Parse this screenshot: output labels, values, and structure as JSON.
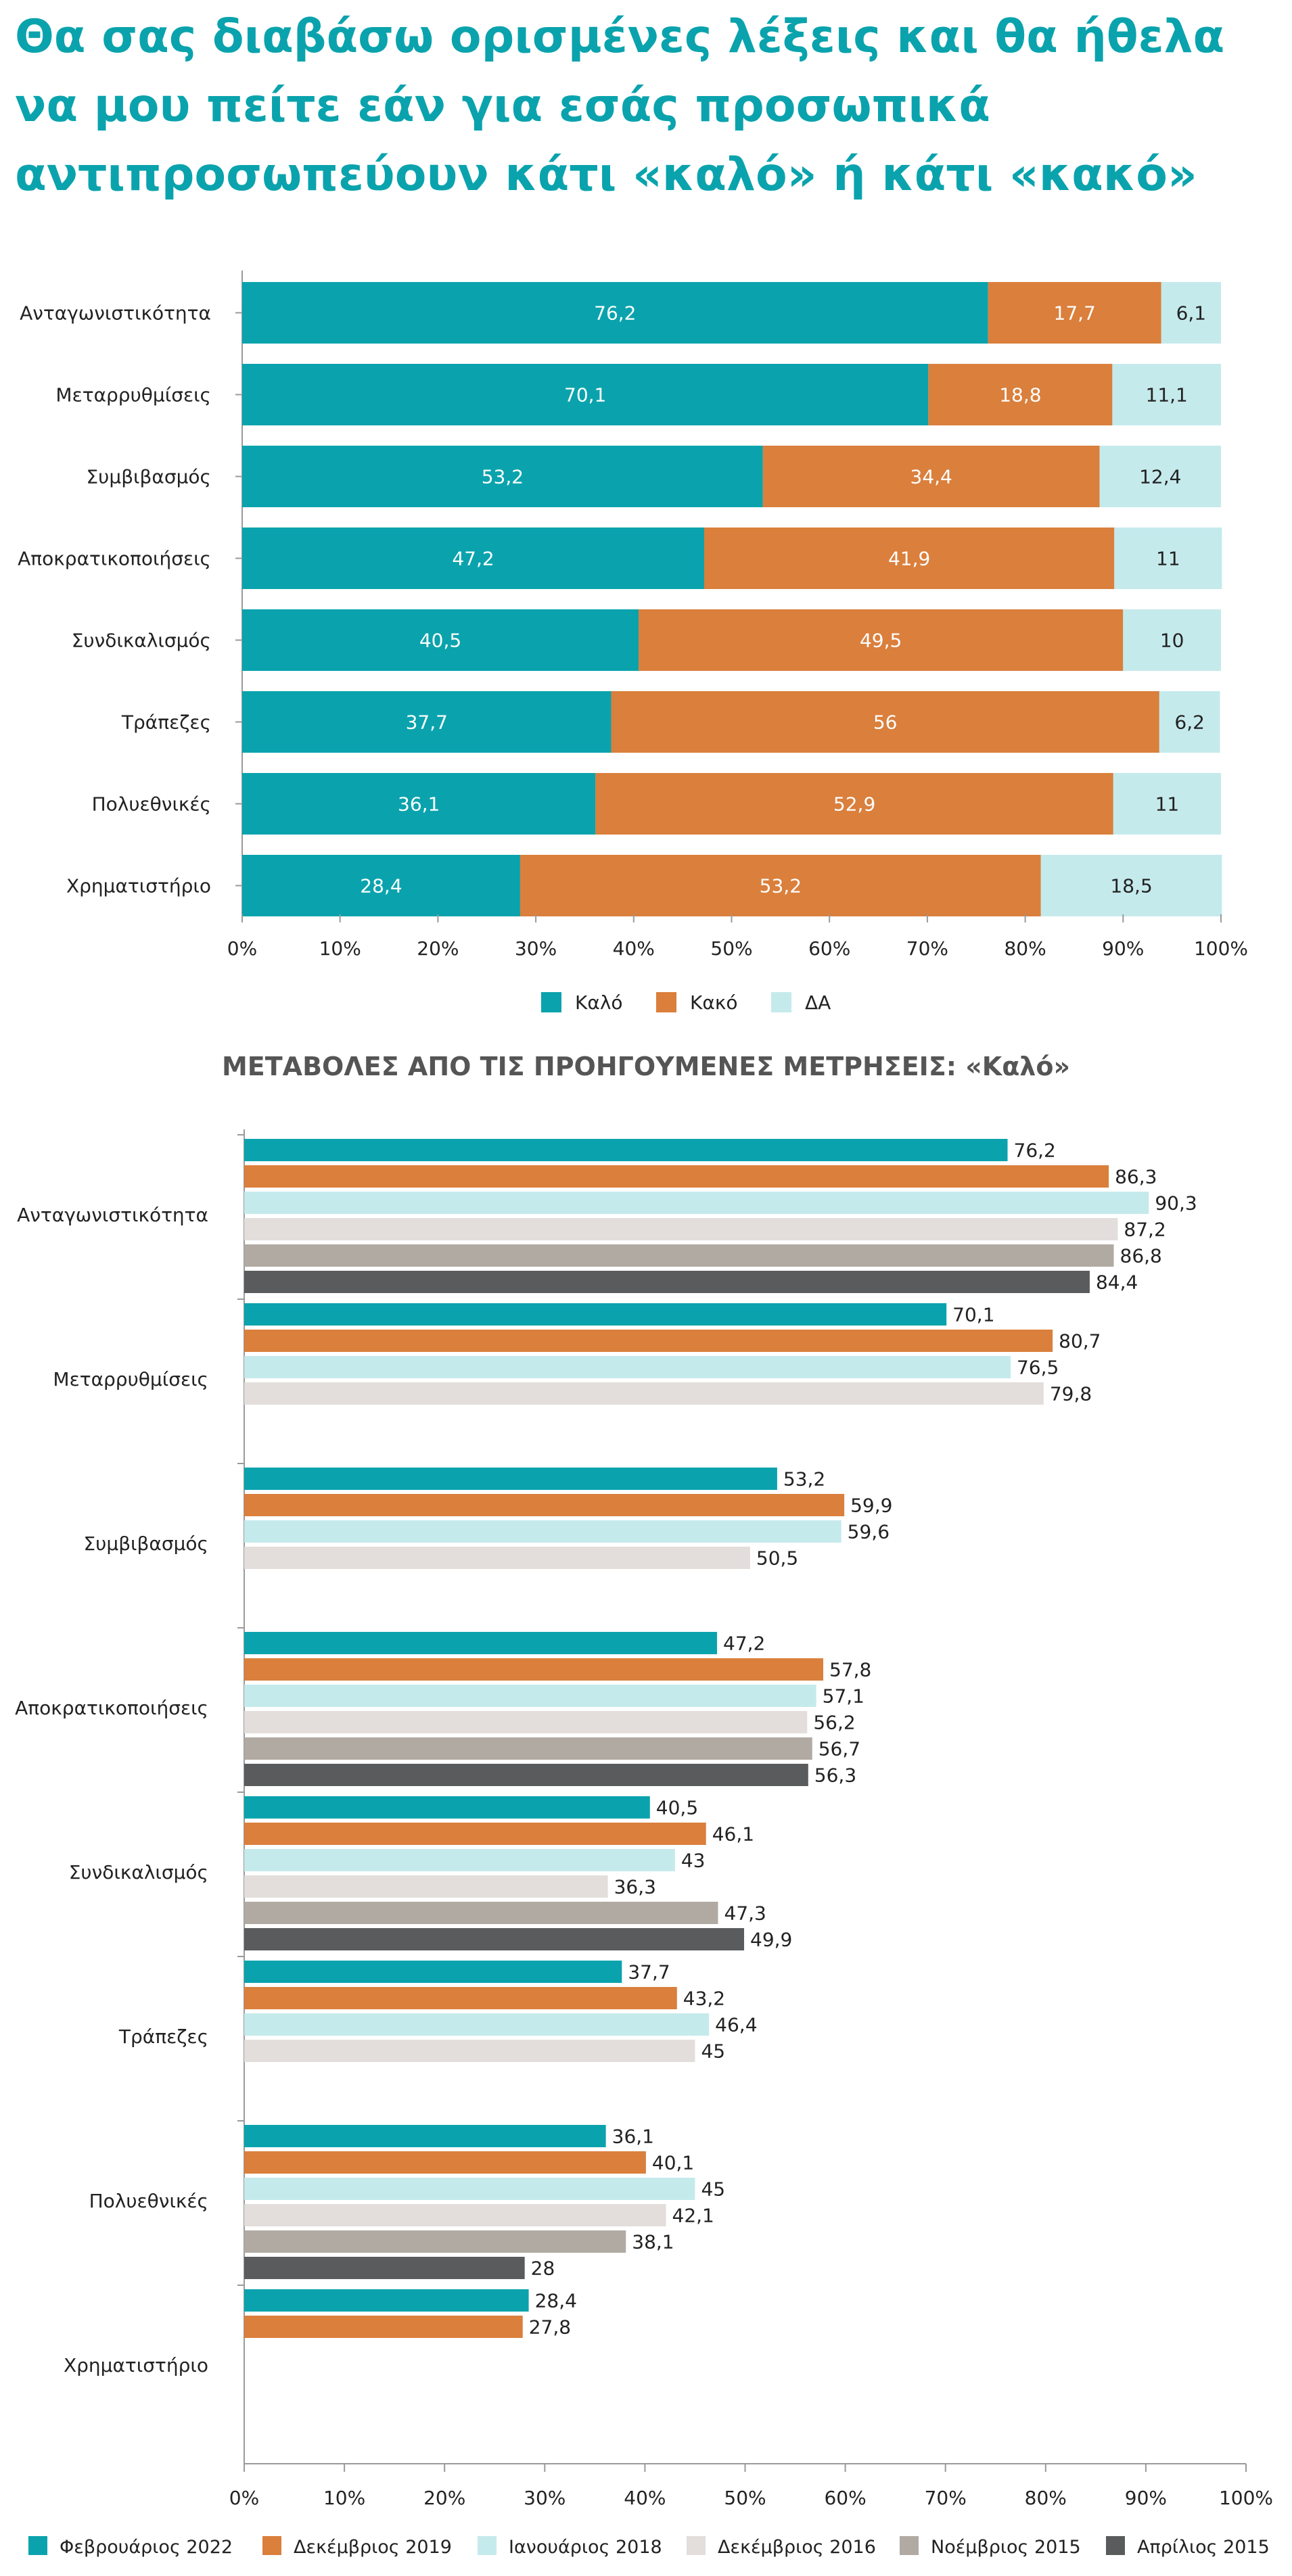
{
  "title": "Θα σας διαβάσω ορισμένες λέξεις και θα ήθελα να μου πείτε εάν για εσάς προσωπικά αντιπροσωπεύουν κάτι «καλό» ή κάτι «κακό»",
  "colors": {
    "title": "#0aa3ad",
    "kalo": "#0aa3ad",
    "kako": "#da7f3c",
    "da": "#c5eaec",
    "dec2016": "#e3dedb",
    "nov2015": "#b1aaa2",
    "apr2015": "#5a5b5d",
    "axis": "#9a9a9a"
  },
  "chart_data": [
    {
      "type": "bar",
      "stacked": true,
      "orientation": "horizontal",
      "categories": [
        "Ανταγωνιστικότητα",
        "Μεταρρυθμίσεις",
        "Συμβιβασμός",
        "Αποκρατικοποιήσεις",
        "Συνδικαλισμός",
        "Τράπεζες",
        "Πολυεθνικές",
        "Χρηματιστήριο"
      ],
      "series": [
        {
          "name": "Καλό",
          "color": "#0aa3ad",
          "values": [
            76.2,
            70.1,
            53.2,
            47.2,
            40.5,
            37.7,
            36.1,
            28.4
          ]
        },
        {
          "name": "Κακό",
          "color": "#da7f3c",
          "values": [
            17.7,
            18.8,
            34.4,
            41.9,
            49.5,
            56,
            52.9,
            53.2
          ]
        },
        {
          "name": "ΔΑ",
          "color": "#c5eaec",
          "values": [
            6.1,
            11.1,
            12.4,
            11,
            10,
            6.2,
            11,
            18.5
          ]
        }
      ],
      "xticks": [
        "0%",
        "10%",
        "20%",
        "30%",
        "40%",
        "50%",
        "60%",
        "70%",
        "80%",
        "90%",
        "100%"
      ],
      "xlim": [
        0,
        100
      ],
      "legend": "bottom"
    },
    {
      "type": "bar",
      "orientation": "horizontal",
      "subtitle": "ΜΕΤΑΒΟΛΕΣ ΑΠΟ ΤΙΣ ΠΡΟΗΓΟΥΜΕΝΕΣ ΜΕΤΡΗΣΕΙΣ: «Καλό»",
      "categories": [
        "Ανταγωνιστικότητα",
        "Μεταρρυθμίσεις",
        "Συμβιβασμός",
        "Αποκρατικοποιήσεις",
        "Συνδικαλισμός",
        "Τράπεζες",
        "Πολυεθνικές",
        "Χρηματιστήριο"
      ],
      "series": [
        {
          "name": "Φεβρουάριος 2022",
          "color": "#0aa3ad",
          "values": [
            76.2,
            70.1,
            53.2,
            47.2,
            40.5,
            37.7,
            36.1,
            28.4
          ]
        },
        {
          "name": "Δεκέμβριος 2019",
          "color": "#da7f3c",
          "values": [
            86.3,
            80.7,
            59.9,
            57.8,
            46.1,
            43.2,
            40.1,
            27.8
          ]
        },
        {
          "name": "Ιανουάριος 2018",
          "color": "#c5eaec",
          "values": [
            90.3,
            76.5,
            59.6,
            57.1,
            43,
            46.4,
            45,
            null
          ]
        },
        {
          "name": "Δεκέμβριος 2016",
          "color": "#e3dedb",
          "values": [
            87.2,
            79.8,
            50.5,
            56.2,
            36.3,
            45,
            42.1,
            null
          ]
        },
        {
          "name": "Νοέμβριος 2015",
          "color": "#b1aaa2",
          "values": [
            86.8,
            null,
            null,
            56.7,
            47.3,
            null,
            38.1,
            null
          ]
        },
        {
          "name": "Απρίλιος 2015",
          "color": "#5a5b5d",
          "values": [
            84.4,
            null,
            null,
            56.3,
            49.9,
            null,
            28,
            null
          ]
        }
      ],
      "xticks": [
        "0%",
        "10%",
        "20%",
        "30%",
        "40%",
        "50%",
        "60%",
        "70%",
        "80%",
        "90%",
        "100%"
      ],
      "xlim": [
        0,
        100
      ],
      "legend": "bottom"
    }
  ]
}
